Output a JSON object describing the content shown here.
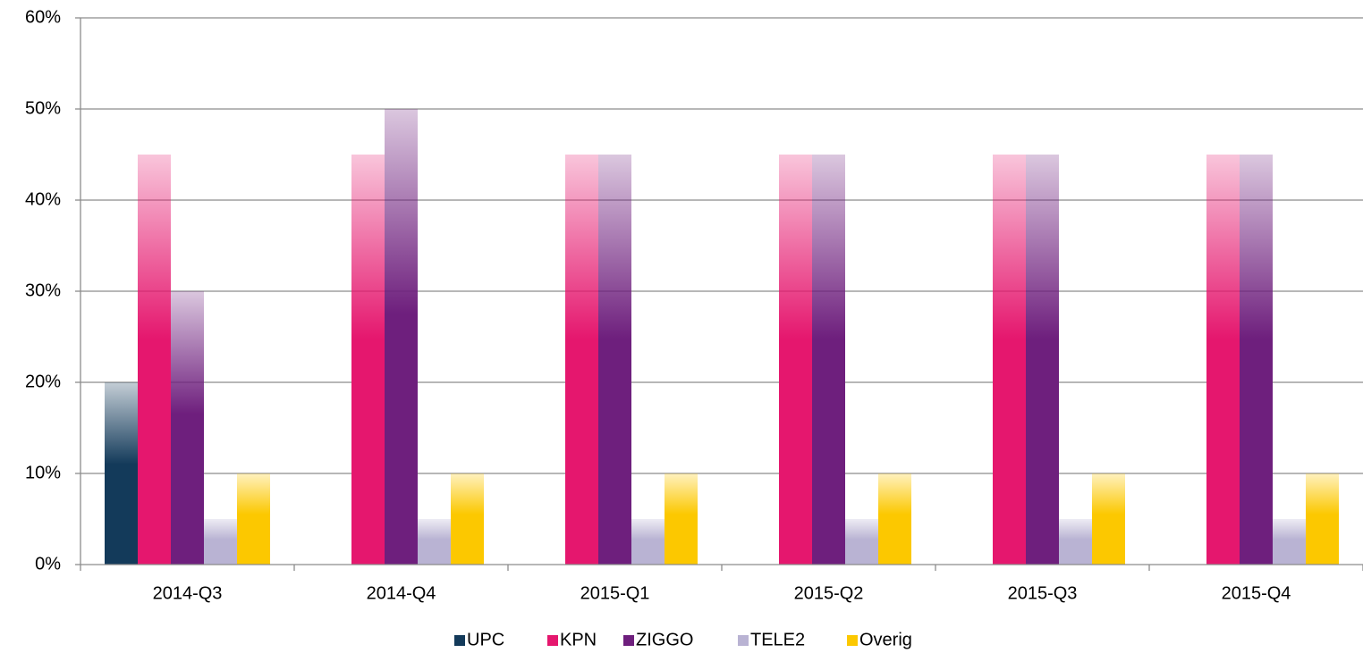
{
  "chart_data": {
    "type": "bar",
    "categories": [
      "2014-Q3",
      "2014-Q4",
      "2015-Q1",
      "2015-Q2",
      "2015-Q3",
      "2015-Q4"
    ],
    "series": [
      {
        "name": "UPC",
        "color": "#133a5a",
        "values": [
          20,
          0,
          0,
          0,
          0,
          0
        ]
      },
      {
        "name": "KPN",
        "color": "#e5176e",
        "values": [
          45,
          45,
          45,
          45,
          45,
          45
        ]
      },
      {
        "name": "ZIGGO",
        "color": "#6e1f7d",
        "values": [
          30,
          50,
          45,
          45,
          45,
          45
        ]
      },
      {
        "name": "TELE2",
        "color": "#b9b3d3",
        "values": [
          5,
          5,
          5,
          5,
          5,
          5
        ]
      },
      {
        "name": "Overig",
        "color": "#fcc800",
        "values": [
          10,
          10,
          10,
          10,
          10,
          10
        ]
      }
    ],
    "ylim": [
      0,
      60
    ],
    "yticks": [
      {
        "value": 0,
        "label": "0%"
      },
      {
        "value": 10,
        "label": "10%"
      },
      {
        "value": 20,
        "label": "20%"
      },
      {
        "value": 30,
        "label": "30%"
      },
      {
        "value": 40,
        "label": "40%"
      },
      {
        "value": 50,
        "label": "50%"
      },
      {
        "value": 60,
        "label": "60%"
      }
    ],
    "grid": true,
    "legend": "bottom"
  }
}
